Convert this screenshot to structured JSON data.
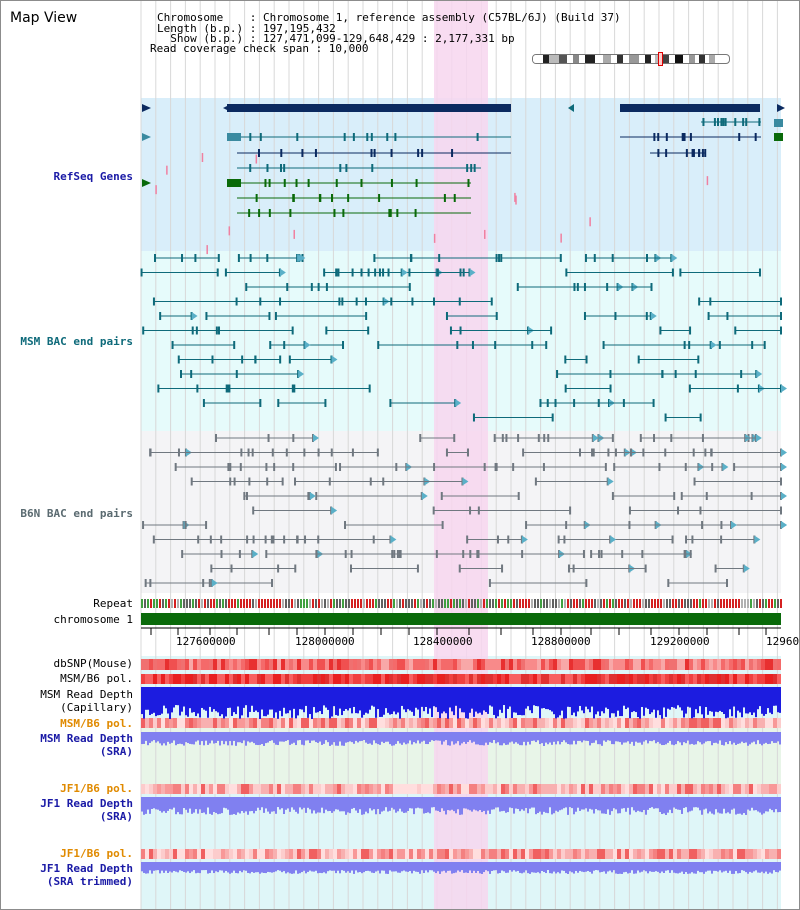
{
  "title": "Map View",
  "header": {
    "line1": "Chromosome    : Chromosome 1, reference assembly (C57BL/6J) (Build 37)",
    "line2": "Length (b.p.) : 197,195,432",
    "line3": "  Show (b.p.) : 127,471,099-129,648,429 : 2,177,331 bp",
    "line4": "Read coverage check span : 10,000"
  },
  "tracks": {
    "refseq": "RefSeq Genes",
    "msm_bac": "MSM BAC end pairs",
    "b6n_bac": "B6N BAC end pairs",
    "repeat": "Repeat",
    "chromosome": "chromosome 1",
    "dbsnp": "dbSNP(Mouse)",
    "msm_b6_pol_1": "MSM/B6 pol.",
    "msm_read_depth_cap": "MSM Read Depth\n(Capillary)",
    "msm_b6_pol_2": "MSM/B6 pol.",
    "msm_read_depth_sra": "MSM Read Depth\n(SRA)",
    "jf1_b6_pol_1": "JF1/B6 pol.",
    "jf1_read_depth_sra": "JF1 Read Depth\n(SRA)",
    "jf1_b6_pol_2": "JF1/B6 pol.",
    "jf1_read_depth_trim": "JF1 Read Depth\n(SRA trimmed)"
  },
  "axis_ticks": [
    "127600000",
    "128000000",
    "128400000",
    "128800000",
    "129200000",
    "12960"
  ],
  "colors": {
    "refseq_label": "#1a1aa6",
    "msm_label": "#0e6a7a",
    "b6n_label": "#5a6a70",
    "orange_label": "#e08a00",
    "depth_label": "#1a1aa6",
    "highlight": "#f7d6ef",
    "chromosome_bar": "#0a6a0a",
    "gene_navy": "#0b2a60",
    "gene_teal": "#0e6a7a",
    "gene_green": "#0a6a0a",
    "depth_blue": "#1c1ce0",
    "depth_lilac": "#8080f0"
  }
}
